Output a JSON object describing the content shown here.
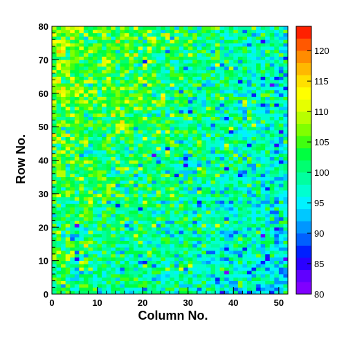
{
  "chart_data": {
    "type": "heatmap",
    "title": "",
    "xlabel": "Column No.",
    "ylabel": "Row No.",
    "xlim": [
      0,
      52
    ],
    "ylim": [
      0,
      80
    ],
    "x_bins": 52,
    "y_bins": 80,
    "x_ticks": [
      0,
      10,
      20,
      30,
      40,
      50
    ],
    "y_ticks": [
      0,
      10,
      20,
      30,
      40,
      50,
      60,
      70,
      80
    ],
    "x_tick_labels": [
      "0",
      "10",
      "20",
      "30",
      "40",
      "50"
    ],
    "y_tick_labels": [
      "0",
      "10",
      "20",
      "30",
      "40",
      "50",
      "60",
      "70",
      "80"
    ],
    "colorbar": {
      "range": [
        80,
        124
      ],
      "levels": 22,
      "tick_values": [
        80,
        85,
        90,
        95,
        100,
        105,
        110,
        115,
        120
      ],
      "tick_labels": [
        "80",
        "85",
        "90",
        "95",
        "100",
        "105",
        "110",
        "115",
        "120"
      ],
      "palette": [
        "#8000ff",
        "#6000ff",
        "#2a00ff",
        "#0020ff",
        "#0060ff",
        "#0096ff",
        "#00c8ff",
        "#00f2ff",
        "#00ffd0",
        "#00ffa0",
        "#00ff70",
        "#00ff40",
        "#40ff10",
        "#80ff00",
        "#b8ff00",
        "#e6ff00",
        "#ffff00",
        "#ffe000",
        "#ffb800",
        "#ff8c00",
        "#ff5800",
        "#ff2000"
      ]
    },
    "value_model": {
      "description": "mean level per pixel cell, higher near top-left, lower toward right",
      "base": 101,
      "top_left_level": 108,
      "right_level": 95,
      "noise": 4.5
    },
    "grid": false,
    "legend": "colorbar-right"
  }
}
